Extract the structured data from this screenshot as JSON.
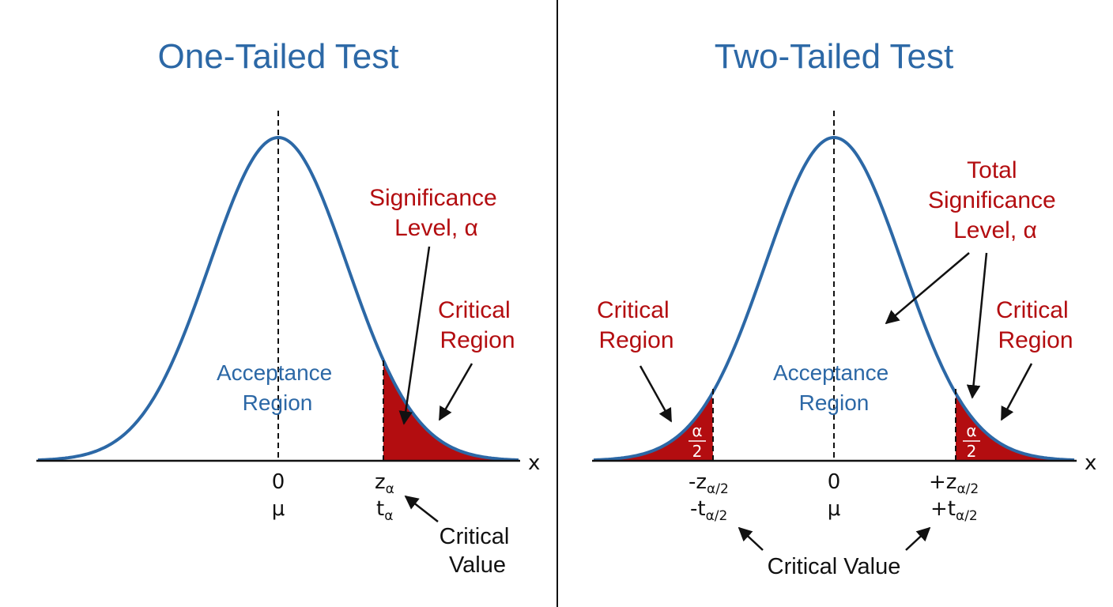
{
  "colors": {
    "curve": "#2c68a6",
    "region_fill": "#b30d10",
    "label_red": "#b30d10",
    "label_blue": "#2c68a6",
    "text": "#111111"
  },
  "one_tailed": {
    "title": "One-Tailed Test",
    "acceptance_region": [
      "Acceptance",
      "Region"
    ],
    "significance_level": [
      "Significance",
      "Level, α"
    ],
    "critical_region": [
      "Critical",
      "Region"
    ],
    "critical_value": [
      "Critical",
      "Value"
    ],
    "axis_label": "x",
    "center_value": "0",
    "center_param": "μ",
    "cv_z": "z",
    "cv_t": "t",
    "cv_sub": "α"
  },
  "two_tailed": {
    "title": "Two-Tailed Test",
    "acceptance_region": [
      "Acceptance",
      "Region"
    ],
    "significance_level": [
      "Total",
      "Significance",
      "Level, α"
    ],
    "left_critical_region": [
      "Critical",
      "Region"
    ],
    "right_critical_region": [
      "Critical",
      "Region"
    ],
    "critical_value": "Critical Value",
    "axis_label": "x",
    "center_value": "0",
    "center_param": "μ",
    "left_cv_z": "-z",
    "left_cv_t": "-t",
    "right_cv_z": "+z",
    "right_cv_t": "+t",
    "cv_sub": "α/2",
    "tail_fraction": [
      "α",
      "2"
    ]
  }
}
